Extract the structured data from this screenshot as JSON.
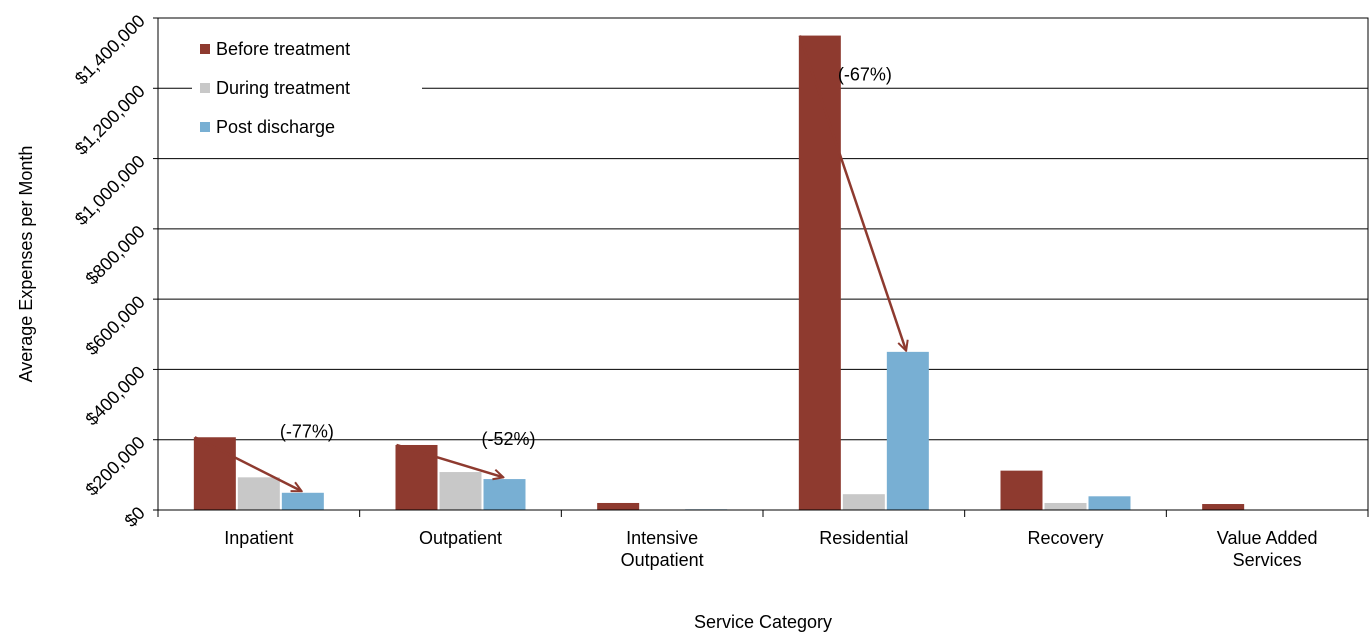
{
  "chart_data": {
    "type": "bar",
    "categories": [
      [
        "Inpatient"
      ],
      [
        "Outpatient"
      ],
      [
        "Intensive",
        "Outpatient"
      ],
      [
        "Residential"
      ],
      [
        "Recovery"
      ],
      [
        "Value Added",
        "Services"
      ]
    ],
    "series": [
      {
        "name": "Before treatment",
        "color": "#8E3A2F",
        "values": [
          207000,
          185000,
          20000,
          1350000,
          112000,
          17000
        ]
      },
      {
        "name": "During treatment",
        "color": "#C8C8C8",
        "values": [
          93000,
          108000,
          0,
          45000,
          20000,
          0
        ]
      },
      {
        "name": "Post discharge",
        "color": "#78AFD3",
        "values": [
          49000,
          88000,
          2000,
          450000,
          39000,
          0
        ]
      }
    ],
    "xlabel": "Service Category",
    "ylabel": "Average Expenses per Month",
    "ylim": [
      0,
      1400000
    ],
    "yticks": [
      0,
      200000,
      400000,
      600000,
      800000,
      1000000,
      1200000,
      1400000
    ],
    "ytick_labels": [
      "$0",
      "$200,000",
      "$400,000",
      "$600,000",
      "$800,000",
      "$1,000,000",
      "$1,200,000",
      "$1,400,000"
    ],
    "grid": true,
    "legend_position": "top-left",
    "arrow_color": "#8E3A2F",
    "annotations": [
      {
        "category_index": 0,
        "text": "(-77%)"
      },
      {
        "category_index": 1,
        "text": "(-52%)"
      },
      {
        "category_index": 3,
        "text": "(-67%)"
      }
    ]
  }
}
